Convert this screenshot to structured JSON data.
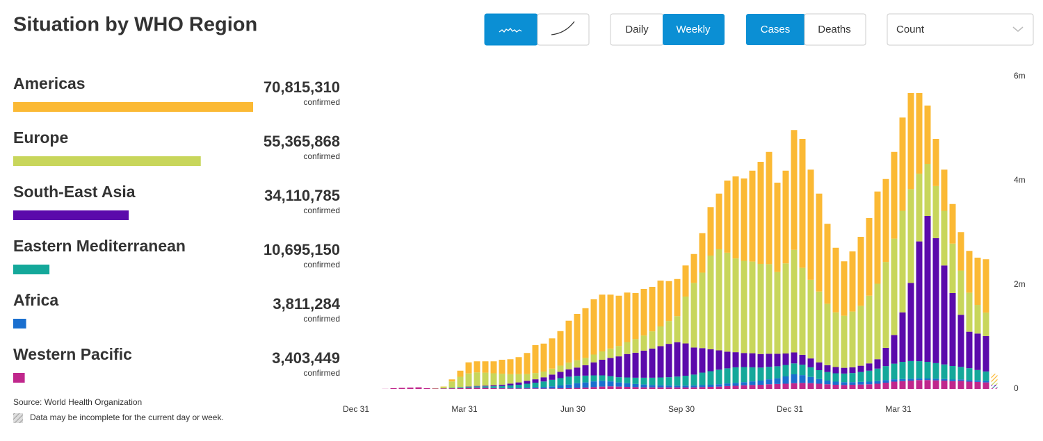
{
  "title": "Situation by WHO Region",
  "controls": {
    "daily": "Daily",
    "weekly": "Weekly",
    "cases": "Cases",
    "deaths": "Deaths",
    "measure": "Count"
  },
  "total_caption": "confirmed",
  "source": "Source: World Health Organization",
  "note": "Data may be incomplete for the current day or week.",
  "chart_data": {
    "type": "bar",
    "stacked": true,
    "incomplete_last": true,
    "grid": false,
    "ylim": [
      0,
      6000000
    ],
    "yticks": [
      0,
      {
        "value": 2000000,
        "label": "2m"
      },
      {
        "value": 4000000,
        "label": "4m"
      },
      {
        "value": 6000000,
        "label": "6m"
      }
    ],
    "categories": [
      "Dec 31",
      null,
      null,
      null,
      null,
      null,
      null,
      null,
      null,
      null,
      null,
      null,
      null,
      "Mar 31",
      null,
      null,
      null,
      null,
      null,
      null,
      null,
      null,
      null,
      null,
      null,
      null,
      "Jun 30",
      null,
      null,
      null,
      null,
      null,
      null,
      null,
      null,
      null,
      null,
      null,
      null,
      "Sep 30",
      null,
      null,
      null,
      null,
      null,
      null,
      null,
      null,
      null,
      null,
      null,
      null,
      "Dec 31",
      null,
      null,
      null,
      null,
      null,
      null,
      null,
      null,
      null,
      null,
      null,
      null,
      "Mar 31",
      null,
      null,
      null,
      null,
      null,
      null,
      null,
      null,
      null,
      null,
      null
    ],
    "series": [
      {
        "name": "Americas",
        "color": "#fbb934",
        "total": 70815310,
        "total_label": "70,815,310",
        "values": [
          0,
          0,
          0,
          0,
          0,
          0,
          0,
          0,
          0,
          1000,
          5000,
          40000,
          117000,
          213000,
          212000,
          218000,
          230000,
          268000,
          288000,
          325000,
          405000,
          535000,
          537000,
          580000,
          663000,
          805000,
          890000,
          955000,
          1060000,
          1090000,
          1035000,
          965000,
          950000,
          885000,
          895000,
          855000,
          880000,
          765000,
          713000,
          597000,
          555000,
          757000,
          930000,
          1070000,
          1385000,
          1575000,
          1580000,
          1745000,
          1960000,
          2155000,
          1715000,
          1780000,
          2300000,
          2475000,
          2115000,
          1880000,
          1535000,
          1240000,
          1045000,
          1155000,
          1325000,
          1490000,
          1770000,
          1592000,
          1665000,
          1790000,
          1845000,
          1548000,
          1120000,
          905000,
          790000,
          760000,
          737000,
          802000,
          907000,
          1025000,
          151000
        ]
      },
      {
        "name": "Europe",
        "color": "#c8d65b",
        "total": 55365868,
        "total_label": "55,365,868",
        "values": [
          0,
          0,
          0,
          0,
          0,
          0,
          0,
          0,
          0,
          5000,
          30000,
          120000,
          200000,
          250000,
          260000,
          250000,
          230000,
          210000,
          180000,
          160000,
          130000,
          120000,
          110000,
          115000,
          120000,
          130000,
          140000,
          140000,
          150000,
          160000,
          180000,
          200000,
          230000,
          260000,
          290000,
          330000,
          380000,
          440000,
          500000,
          900000,
          1240000,
          1450000,
          1800000,
          1940000,
          1900000,
          1800000,
          1770000,
          1760000,
          1730000,
          1720000,
          1570000,
          1730000,
          1970000,
          1670000,
          1510000,
          1360000,
          1180000,
          1050000,
          1000000,
          1070000,
          1150000,
          1300000,
          1450000,
          1650000,
          1850000,
          1950000,
          1800000,
          1300000,
          1000000,
          1000000,
          1050000,
          950000,
          850000,
          750000,
          550000,
          450000,
          60000
        ]
      },
      {
        "name": "South-East Asia",
        "color": "#5b0aab",
        "total": 34110785,
        "total_label": "34,110,785",
        "values": [
          0,
          0,
          0,
          0,
          0,
          0,
          0,
          0,
          0,
          0,
          0,
          1000,
          2000,
          5000,
          8000,
          12000,
          18000,
          25000,
          35000,
          45000,
          55000,
          65000,
          80000,
          100000,
          120000,
          140000,
          160000,
          200000,
          250000,
          300000,
          350000,
          400000,
          450000,
          480000,
          520000,
          560000,
          600000,
          640000,
          660000,
          620000,
          520000,
          470000,
          420000,
          370000,
          320000,
          290000,
          270000,
          270000,
          260000,
          250000,
          240000,
          220000,
          210000,
          190000,
          170000,
          150000,
          130000,
          120000,
          110000,
          110000,
          120000,
          140000,
          180000,
          350000,
          550000,
          950000,
          1500000,
          2300000,
          2800000,
          2400000,
          1900000,
          1400000,
          1000000,
          700000,
          700000,
          680000,
          30000
        ]
      },
      {
        "name": "Eastern Mediterranean",
        "color": "#14a89a",
        "total": 10695150,
        "total_label": "10,695,150",
        "values": [
          0,
          0,
          0,
          0,
          0,
          0,
          0,
          0,
          0,
          1000,
          2000,
          10000,
          15000,
          20000,
          22000,
          25000,
          30000,
          35000,
          45000,
          55000,
          70000,
          85000,
          105000,
          125000,
          140000,
          150000,
          140000,
          130000,
          115000,
          105000,
          100000,
          100000,
          110000,
          120000,
          130000,
          140000,
          150000,
          160000,
          175000,
          190000,
          210000,
          240000,
          260000,
          280000,
          290000,
          300000,
          290000,
          270000,
          250000,
          240000,
          230000,
          220000,
          210000,
          200000,
          185000,
          170000,
          165000,
          160000,
          165000,
          175000,
          190000,
          210000,
          240000,
          270000,
          300000,
          330000,
          340000,
          330000,
          320000,
          300000,
          280000,
          260000,
          240000,
          230000,
          200000,
          180000,
          25000
        ]
      },
      {
        "name": "Africa",
        "color": "#1a6fcf",
        "total": 3811284,
        "total_label": "3,811,284",
        "values": [
          0,
          0,
          0,
          0,
          0,
          0,
          0,
          0,
          0,
          0,
          0,
          0,
          1000,
          2000,
          3000,
          5000,
          7000,
          10000,
          12000,
          15000,
          20000,
          25000,
          30000,
          40000,
          55000,
          70000,
          90000,
          100000,
          110000,
          110000,
          95000,
          80000,
          70000,
          60000,
          55000,
          45000,
          40000,
          35000,
          32000,
          35000,
          35000,
          38000,
          40000,
          45000,
          50000,
          55000,
          60000,
          70000,
          80000,
          95000,
          110000,
          140000,
          170000,
          150000,
          120000,
          90000,
          70000,
          60000,
          55000,
          50000,
          50000,
          50000,
          50000,
          48000,
          45000,
          40000,
          35000,
          32000,
          30000,
          30000,
          30000,
          30000,
          28000,
          28000,
          28000,
          30000,
          4000
        ]
      },
      {
        "name": "Western Pacific",
        "color": "#c0278c",
        "total": 3403449,
        "total_label": "3,403,449",
        "values": [
          0,
          0,
          0,
          2000,
          15000,
          20000,
          25000,
          30000,
          15000,
          8000,
          10000,
          12000,
          15000,
          20000,
          25000,
          20000,
          15000,
          12000,
          10000,
          10000,
          10000,
          10000,
          8000,
          10000,
          12000,
          15000,
          20000,
          25000,
          35000,
          45000,
          50000,
          45000,
          40000,
          35000,
          30000,
          30000,
          30000,
          30000,
          30000,
          28000,
          30000,
          35000,
          40000,
          45000,
          55000,
          60000,
          70000,
          75000,
          80000,
          90000,
          95000,
          100000,
          110000,
          115000,
          110000,
          100000,
          90000,
          80000,
          75000,
          80000,
          85000,
          90000,
          100000,
          120000,
          140000,
          150000,
          160000,
          170000,
          170000,
          165000,
          160000,
          150000,
          155000,
          140000,
          135000,
          125000,
          20000
        ]
      }
    ]
  }
}
